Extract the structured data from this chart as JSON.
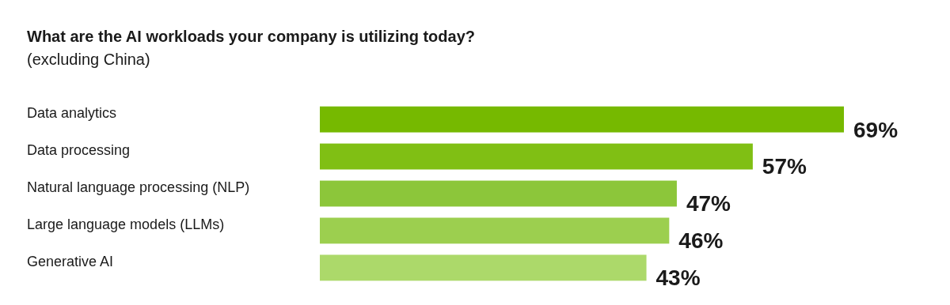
{
  "chart_data": {
    "type": "bar",
    "orientation": "horizontal",
    "title": "What are the AI workloads your company is utilizing today?",
    "subtitle": "(excluding China)",
    "categories": [
      "Data analytics",
      "Data processing",
      "Natural language processing (NLP)",
      "Large language models (LLMs)",
      "Generative AI"
    ],
    "values": [
      69,
      57,
      47,
      46,
      43
    ],
    "colors": [
      "#76b900",
      "#80bf14",
      "#8cc63a",
      "#9ccf4f",
      "#acd96a"
    ],
    "value_labels": [
      "69%",
      "57%",
      "47%",
      "46%",
      "43%"
    ]
  }
}
